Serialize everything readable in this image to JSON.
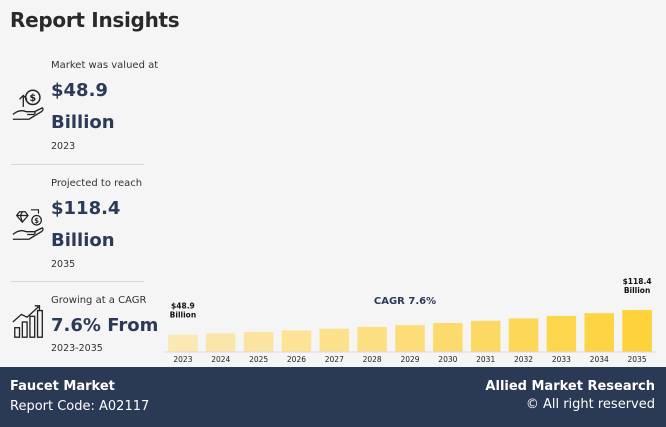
{
  "heading": "Report Insights",
  "stats": [
    {
      "label": "Market was valued at",
      "value": "$48.9",
      "unit": "Billion",
      "year": "2023",
      "icon": "money-hand-icon"
    },
    {
      "label": "Projected to reach",
      "value": "$118.4",
      "unit": "Billion",
      "year": "2035",
      "icon": "growth-hand-icon"
    },
    {
      "label": "Growing at a CAGR",
      "value": "7.6% From",
      "unit": "",
      "year": "2023-2035",
      "icon": "rising-bars-icon"
    }
  ],
  "chart_data": {
    "type": "bar",
    "categories": [
      "2023",
      "2024",
      "2025",
      "2026",
      "2027",
      "2028",
      "2029",
      "2030",
      "2031",
      "2032",
      "2033",
      "2034",
      "2035"
    ],
    "values": [
      48.9,
      52.6,
      56.6,
      60.9,
      65.6,
      70.6,
      75.9,
      81.7,
      87.9,
      94.6,
      101.8,
      109.5,
      118.4
    ],
    "first_label": [
      "$48.9",
      "Billion"
    ],
    "last_label": [
      "$118.4",
      "Billion"
    ],
    "annotation": "CAGR 7.6%",
    "colors": {
      "start": "#fbe8b3",
      "end": "#fdd23a",
      "axis": "#d9d9d9"
    },
    "grid": false
  },
  "footer": {
    "market": "Faucet Market",
    "report_code": "Report Code: A02117",
    "brand": "Allied Market Research",
    "rights": "© All right reserved"
  }
}
